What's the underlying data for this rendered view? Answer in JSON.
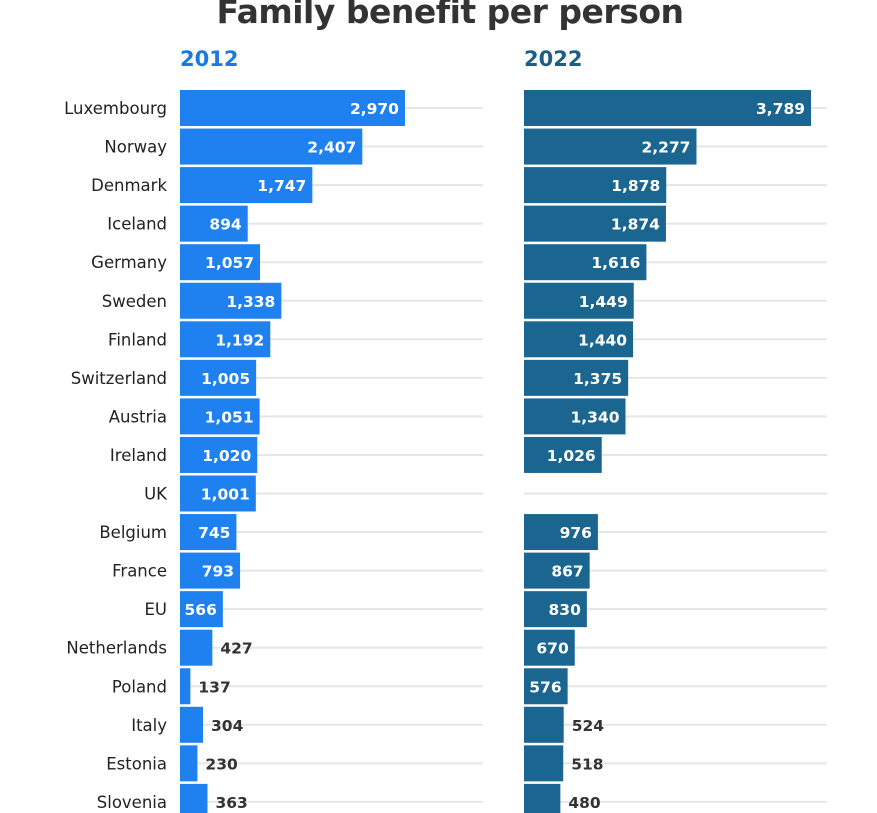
{
  "chart_data": {
    "type": "bar",
    "orientation": "horizontal",
    "title": "Family benefit per person",
    "categories": [
      "Luxembourg",
      "Norway",
      "Denmark",
      "Iceland",
      "Germany",
      "Sweden",
      "Finland",
      "Switzerland",
      "Austria",
      "Ireland",
      "UK",
      "Belgium",
      "France",
      "EU",
      "Netherlands",
      "Poland",
      "Italy",
      "Estonia",
      "Slovenia"
    ],
    "series": [
      {
        "name": "2012",
        "color": "#1f80f0",
        "label_color": "#1a7ae0",
        "values": [
          2970,
          2407,
          1747,
          894,
          1057,
          1338,
          1192,
          1005,
          1051,
          1020,
          1001,
          745,
          793,
          566,
          427,
          137,
          304,
          230,
          363
        ],
        "labels": [
          "2,970",
          "2,407",
          "1,747",
          "894",
          "1,057",
          "1,338",
          "1,192",
          "1,005",
          "1,051",
          "1,020",
          "1,001",
          "745",
          "793",
          "566",
          "427",
          "137",
          "304",
          "230",
          "363"
        ]
      },
      {
        "name": "2022",
        "color": "#1b6690",
        "label_color": "#1b5f86",
        "values": [
          3789,
          2277,
          1878,
          1874,
          1616,
          1449,
          1440,
          1375,
          1340,
          1026,
          null,
          976,
          867,
          830,
          670,
          576,
          524,
          518,
          480
        ],
        "labels": [
          "3,789",
          "2,277",
          "1,878",
          "1,874",
          "1,616",
          "1,449",
          "1,440",
          "1,375",
          "1,340",
          "1,026",
          "",
          "976",
          "867",
          "830",
          "670",
          "576",
          "524",
          "518",
          "480"
        ]
      }
    ],
    "xlim": [
      0,
      4000
    ],
    "grid": true,
    "legend": "none"
  }
}
